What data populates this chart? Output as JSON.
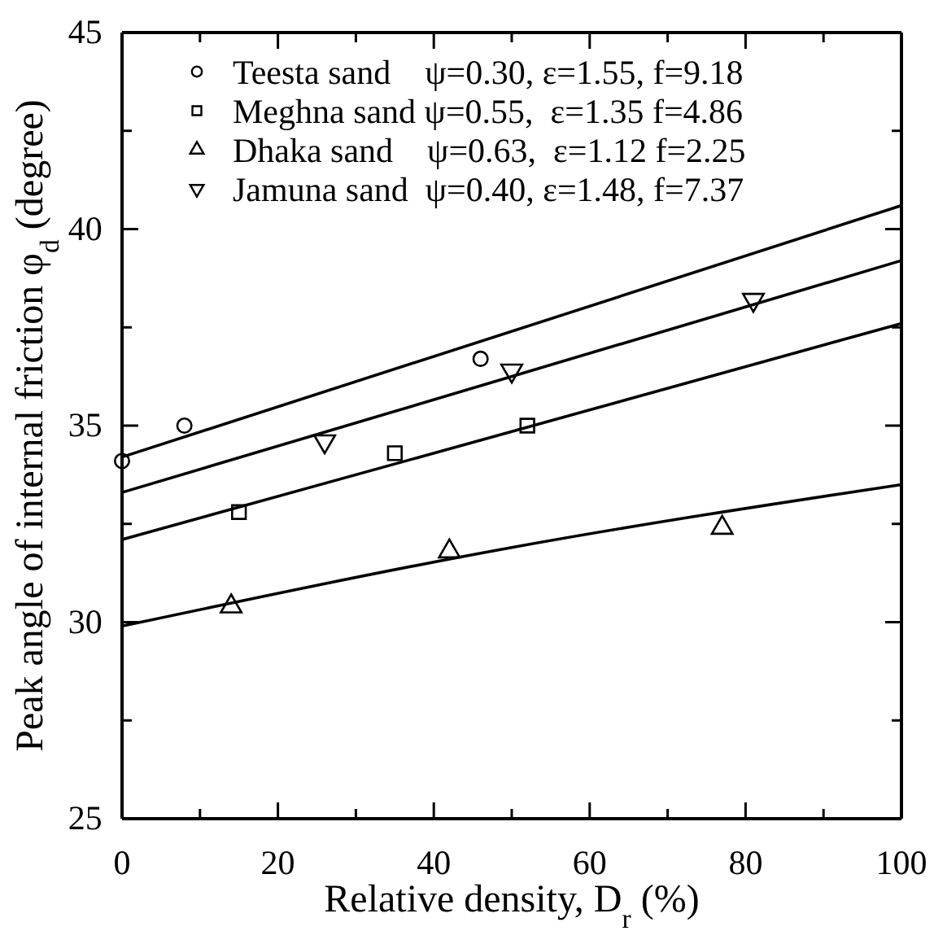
{
  "chart_data": {
    "type": "scatter",
    "xlabel": "Relative density, D$_{r}$ (%)",
    "ylabel": "Peak angle of internal friction φ$_{d}$ (degree)",
    "xlim": [
      0,
      100
    ],
    "ylim": [
      25,
      45
    ],
    "xticks": [
      0,
      {
        "value": 10,
        "label": null
      },
      20,
      {
        "value": 30,
        "label": null
      },
      40,
      {
        "value": 50,
        "label": null
      },
      60,
      {
        "value": 70,
        "label": null
      },
      80,
      {
        "value": 90,
        "label": null
      },
      100
    ],
    "yticks": [
      25,
      {
        "value": 27.5,
        "label": null
      },
      30,
      {
        "value": 32.5,
        "label": null
      },
      35,
      {
        "value": 37.5,
        "label": null
      },
      40,
      {
        "value": 42.5,
        "label": null
      },
      45
    ],
    "grid": false,
    "legend": "top left",
    "series": [
      {
        "name": "Teesta sand    ψ=0.30, ε=1.55, f=9.18",
        "marker": "circle",
        "color": "#000000",
        "x": [
          0,
          8,
          46
        ],
        "values": [
          34.1,
          35.0,
          36.7
        ]
      },
      {
        "name": "Meghna sand ψ=0.55,  ε=1.35 f=4.86",
        "marker": "square",
        "color": "#000000",
        "x": [
          15,
          35,
          52
        ],
        "values": [
          32.8,
          34.3,
          35.0
        ]
      },
      {
        "name": "Dhaka sand    ψ=0.63,  ε=1.12 f=2.25",
        "marker": "triangle",
        "color": "#000000",
        "x": [
          14,
          42,
          77
        ],
        "values": [
          30.4,
          31.8,
          32.4
        ]
      },
      {
        "name": "Jamuna sand  ψ=0.40, ε=1.48, f=7.37",
        "marker": "triangle-down",
        "color": "#000000",
        "x": [
          26,
          50,
          81
        ],
        "values": [
          34.6,
          36.4,
          38.2
        ]
      },
      {
        "type": "line",
        "marker": "none",
        "line_style": "solid",
        "color": "#000000",
        "x": [
          0,
          100
        ],
        "values": [
          34.2,
          40.6
        ]
      },
      {
        "type": "line",
        "marker": "none",
        "line_style": "solid",
        "color": "#000000",
        "x": [
          0,
          100
        ],
        "values": [
          33.3,
          39.2
        ]
      },
      {
        "type": "line",
        "marker": "none",
        "line_style": "solid",
        "color": "#000000",
        "x": [
          0,
          100
        ],
        "values": [
          32.1,
          37.6
        ]
      },
      {
        "type": "line",
        "marker": "none",
        "line_style": "solid",
        "color": "#000000",
        "x": [
          0,
          50,
          100
        ],
        "values": [
          29.9,
          31.9,
          33.5
        ]
      }
    ]
  }
}
